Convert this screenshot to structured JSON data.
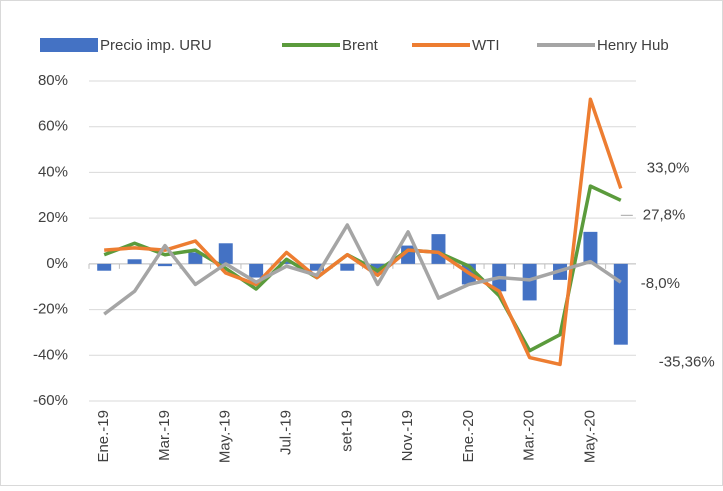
{
  "chart_data": {
    "type": "bar-line",
    "categories": [
      "Ene.-19",
      null,
      "Mar.-19",
      null,
      "May.-19",
      null,
      "Jul.-19",
      null,
      "set-19",
      null,
      "Nov.-19",
      null,
      "Ene.-20",
      null,
      "Mar.-20",
      null,
      "May.-20",
      null
    ],
    "series": [
      {
        "name": "Precio imp. URU",
        "type": "bar",
        "color": "#4472c4",
        "values": [
          -3,
          2,
          -1,
          5,
          9,
          -6,
          1,
          -3,
          -3,
          -4,
          8,
          13,
          -9,
          -12,
          -16,
          -7,
          14,
          -35.36
        ],
        "value_labels": [
          null,
          null,
          null,
          null,
          null,
          null,
          null,
          null,
          null,
          null,
          null,
          null,
          null,
          null,
          null,
          null,
          null,
          "-35,36%"
        ]
      },
      {
        "name": "Brent",
        "type": "line",
        "color": "#5b9b3c",
        "values": [
          4,
          9,
          4,
          6,
          -2,
          -11,
          2,
          -6,
          4,
          -3,
          6,
          5,
          -1,
          -14,
          -38,
          -31,
          34,
          27.8
        ],
        "value_labels": [
          null,
          null,
          null,
          null,
          null,
          null,
          null,
          null,
          null,
          null,
          null,
          null,
          null,
          null,
          null,
          null,
          null,
          "27,8%"
        ]
      },
      {
        "name": "WTI",
        "type": "line",
        "color": "#ed7d31",
        "values": [
          6,
          7,
          6,
          10,
          -4,
          -9,
          5,
          -6,
          4,
          -5,
          6,
          5,
          -4,
          -12,
          -41,
          -44,
          72,
          33
        ],
        "value_labels": [
          null,
          null,
          null,
          null,
          null,
          null,
          null,
          null,
          null,
          null,
          null,
          null,
          null,
          null,
          null,
          null,
          null,
          "33,0%"
        ]
      },
      {
        "name": "Henry Hub",
        "type": "line",
        "color": "#a5a5a5",
        "values": [
          -22,
          -12,
          8,
          -9,
          0,
          -8,
          -1,
          -5,
          17,
          -9,
          14,
          -15,
          -9,
          -6,
          -7,
          -3,
          1,
          -8
        ],
        "value_labels": [
          null,
          null,
          null,
          null,
          null,
          null,
          null,
          null,
          null,
          null,
          null,
          null,
          null,
          null,
          null,
          null,
          null,
          "-8,0%"
        ]
      }
    ],
    "ylim": [
      -60,
      80
    ],
    "yticks": [
      {
        "value": -60,
        "label": "-60%"
      },
      {
        "value": -40,
        "label": "-40%"
      },
      {
        "value": -20,
        "label": "-20%"
      },
      {
        "value": 0,
        "label": "0%"
      },
      {
        "value": 20,
        "label": "20%"
      },
      {
        "value": 40,
        "label": "40%"
      },
      {
        "value": 60,
        "label": "60%"
      },
      {
        "value": 80,
        "label": "80%"
      }
    ],
    "grid": true,
    "legend": "top"
  }
}
